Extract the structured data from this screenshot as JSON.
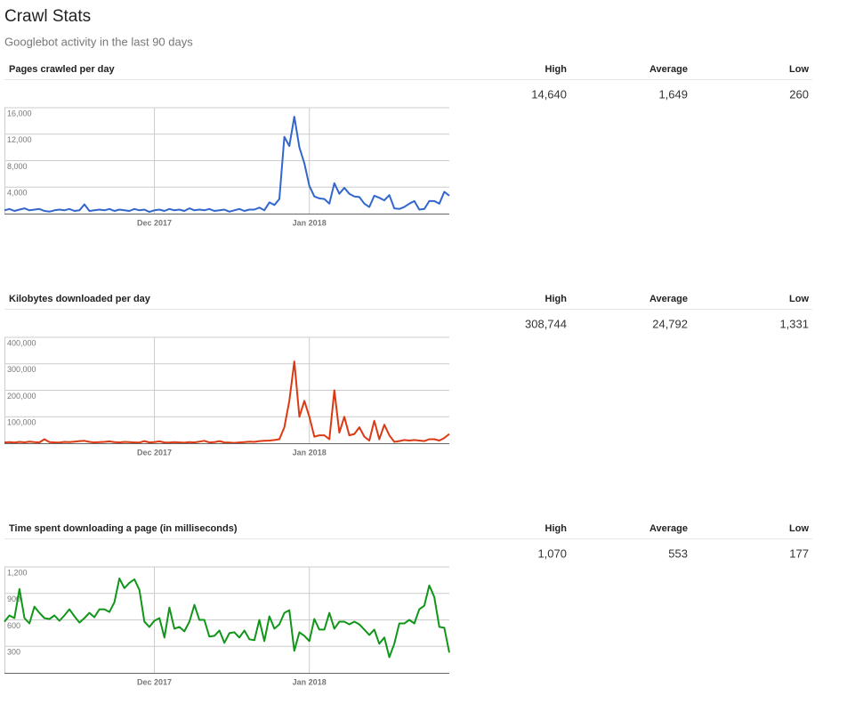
{
  "header": {
    "title": "Crawl Stats",
    "subtitle": "Googlebot activity in the last 90 days"
  },
  "sections": [
    {
      "title": "Pages crawled per day",
      "stats": {
        "labels": [
          "High",
          "Average",
          "Low"
        ],
        "values": [
          "14,640",
          "1,649",
          "260"
        ]
      }
    },
    {
      "title": "Kilobytes downloaded per day",
      "stats": {
        "labels": [
          "High",
          "Average",
          "Low"
        ],
        "values": [
          "308,744",
          "24,792",
          "1,331"
        ]
      }
    },
    {
      "title": "Time spent downloading a page (in milliseconds)",
      "stats": {
        "labels": [
          "High",
          "Average",
          "Low"
        ],
        "values": [
          "1,070",
          "553",
          "177"
        ]
      }
    }
  ],
  "chart_data": [
    {
      "type": "line",
      "color": "#3366cc",
      "categories": [
        null,
        null,
        null,
        null,
        null,
        null,
        null,
        null,
        null,
        null,
        null,
        null,
        null,
        null,
        null,
        null,
        null,
        null,
        null,
        null,
        null,
        null,
        null,
        null,
        null,
        null,
        null,
        null,
        null,
        null,
        "Dec 2017",
        null,
        null,
        null,
        null,
        null,
        null,
        null,
        null,
        null,
        null,
        null,
        null,
        null,
        null,
        null,
        null,
        null,
        null,
        null,
        null,
        null,
        null,
        null,
        null,
        null,
        null,
        null,
        null,
        null,
        null,
        "Jan 2018",
        null,
        null,
        null,
        null,
        null,
        null,
        null,
        null,
        null,
        null,
        null,
        null,
        null,
        null,
        null,
        null,
        null,
        null,
        null,
        null,
        null,
        null,
        null,
        null,
        null,
        null,
        null,
        null
      ],
      "values": [
        500,
        700,
        400,
        600,
        800,
        500,
        600,
        700,
        400,
        300,
        500,
        600,
        500,
        700,
        400,
        500,
        1400,
        400,
        500,
        600,
        500,
        700,
        400,
        600,
        500,
        400,
        700,
        500,
        600,
        260,
        500,
        600,
        400,
        700,
        500,
        600,
        400,
        800,
        500,
        600,
        500,
        700,
        400,
        500,
        600,
        300,
        500,
        700,
        400,
        600,
        600,
        900,
        500,
        1700,
        1300,
        2200,
        11600,
        10200,
        14640,
        10000,
        7600,
        4200,
        2600,
        2300,
        2200,
        1500,
        4600,
        3000,
        3900,
        3000,
        2600,
        2500,
        1500,
        1000,
        2700,
        2400,
        2000,
        2800,
        800,
        700,
        1000,
        1500,
        1900,
        600,
        700,
        1900,
        1900,
        1500,
        3300,
        2700
      ],
      "ylim": [
        0,
        16000
      ],
      "yticks": [
        {
          "value": 4000,
          "label": "4,000"
        },
        {
          "value": 8000,
          "label": "8,000"
        },
        {
          "value": 12000,
          "label": "12,000"
        },
        {
          "value": 16000,
          "label": "16,000"
        }
      ]
    },
    {
      "type": "line",
      "color": "#dc3912",
      "categories": [
        null,
        null,
        null,
        null,
        null,
        null,
        null,
        null,
        null,
        null,
        null,
        null,
        null,
        null,
        null,
        null,
        null,
        null,
        null,
        null,
        null,
        null,
        null,
        null,
        null,
        null,
        null,
        null,
        null,
        null,
        "Dec 2017",
        null,
        null,
        null,
        null,
        null,
        null,
        null,
        null,
        null,
        null,
        null,
        null,
        null,
        null,
        null,
        null,
        null,
        null,
        null,
        null,
        null,
        null,
        null,
        null,
        null,
        null,
        null,
        null,
        null,
        null,
        "Jan 2018",
        null,
        null,
        null,
        null,
        null,
        null,
        null,
        null,
        null,
        null,
        null,
        null,
        null,
        null,
        null,
        null,
        null,
        null,
        null,
        null,
        null,
        null,
        null,
        null,
        null,
        null,
        null,
        null
      ],
      "values": [
        3000,
        4000,
        2500,
        5000,
        3500,
        6000,
        4000,
        3000,
        15000,
        4000,
        3000,
        2500,
        5000,
        4000,
        6000,
        8000,
        9000,
        5000,
        3000,
        4000,
        5000,
        7000,
        4000,
        3000,
        5000,
        4000,
        3000,
        2500,
        8000,
        3000,
        4000,
        7000,
        3000,
        2500,
        4000,
        3000,
        2000,
        4000,
        3000,
        6000,
        9000,
        3000,
        4000,
        8000,
        3000,
        2500,
        1331,
        3000,
        4000,
        6000,
        5000,
        8000,
        9000,
        10000,
        12000,
        15000,
        60000,
        160000,
        308744,
        100000,
        160000,
        100000,
        25000,
        30000,
        30000,
        15000,
        200000,
        40000,
        100000,
        30000,
        35000,
        60000,
        25000,
        10000,
        85000,
        15000,
        70000,
        30000,
        5000,
        8000,
        12000,
        10000,
        12000,
        10000,
        8000,
        15000,
        15000,
        10000,
        20000,
        35000
      ],
      "ylim": [
        0,
        400000
      ],
      "yticks": [
        {
          "value": 100000,
          "label": "100,000"
        },
        {
          "value": 200000,
          "label": "200,000"
        },
        {
          "value": 300000,
          "label": "300,000"
        },
        {
          "value": 400000,
          "label": "400,000"
        }
      ]
    },
    {
      "type": "line",
      "color": "#109618",
      "categories": [
        null,
        null,
        null,
        null,
        null,
        null,
        null,
        null,
        null,
        null,
        null,
        null,
        null,
        null,
        null,
        null,
        null,
        null,
        null,
        null,
        null,
        null,
        null,
        null,
        null,
        null,
        null,
        null,
        null,
        null,
        "Dec 2017",
        null,
        null,
        null,
        null,
        null,
        null,
        null,
        null,
        null,
        null,
        null,
        null,
        null,
        null,
        null,
        null,
        null,
        null,
        null,
        null,
        null,
        null,
        null,
        null,
        null,
        null,
        null,
        null,
        null,
        null,
        "Jan 2018",
        null,
        null,
        null,
        null,
        null,
        null,
        null,
        null,
        null,
        null,
        null,
        null,
        null,
        null,
        null,
        null,
        null,
        null,
        null,
        null,
        null,
        null,
        null,
        null,
        null,
        null,
        null,
        null
      ],
      "values": [
        580,
        650,
        620,
        950,
        620,
        560,
        750,
        680,
        620,
        610,
        650,
        590,
        650,
        720,
        640,
        570,
        620,
        680,
        630,
        720,
        720,
        690,
        800,
        1070,
        960,
        1020,
        1060,
        940,
        580,
        520,
        590,
        620,
        400,
        740,
        500,
        520,
        470,
        580,
        770,
        600,
        600,
        410,
        420,
        480,
        340,
        450,
        460,
        400,
        480,
        380,
        370,
        600,
        360,
        640,
        500,
        550,
        680,
        710,
        250,
        460,
        420,
        360,
        610,
        490,
        490,
        680,
        500,
        580,
        580,
        550,
        580,
        550,
        490,
        430,
        490,
        330,
        400,
        177,
        330,
        560,
        560,
        600,
        560,
        720,
        760,
        990,
        860,
        520,
        510,
        230
      ],
      "ylim": [
        0,
        1200
      ],
      "yticks": [
        {
          "value": 300,
          "label": "300"
        },
        {
          "value": 600,
          "label": "600"
        },
        {
          "value": 900,
          "label": "900"
        },
        {
          "value": 1200,
          "label": "1,200"
        }
      ]
    }
  ]
}
